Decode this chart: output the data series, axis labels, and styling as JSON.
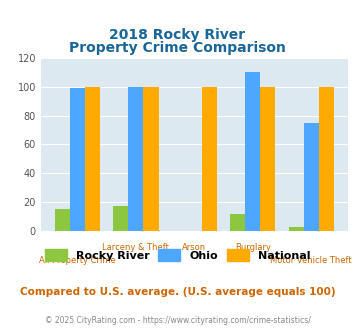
{
  "title_line1": "2018 Rocky River",
  "title_line2": "Property Crime Comparison",
  "categories": [
    "All Property Crime",
    "Larceny & Theft",
    "Arson",
    "Burglary",
    "Motor Vehicle Theft"
  ],
  "top_labels": [
    "",
    "Larceny & Theft",
    "Arson",
    "Burglary",
    ""
  ],
  "bottom_labels": [
    "All Property Crime",
    "",
    "",
    "",
    "Motor Vehicle Theft"
  ],
  "series": {
    "Rocky River": [
      15,
      17,
      0,
      12,
      3
    ],
    "Ohio": [
      99,
      100,
      0,
      110,
      75
    ],
    "National": [
      100,
      100,
      100,
      100,
      100
    ]
  },
  "colors": {
    "Rocky River": "#8dc63f",
    "Ohio": "#4da6ff",
    "National": "#ffaa00"
  },
  "ylim": [
    0,
    120
  ],
  "yticks": [
    0,
    20,
    40,
    60,
    80,
    100,
    120
  ],
  "plot_bg": "#dce9f0",
  "title_color": "#1a6699",
  "xlabel_color": "#cc6600",
  "footer_note": "Compared to U.S. average. (U.S. average equals 100)",
  "copyright": "© 2025 CityRating.com - https://www.cityrating.com/crime-statistics/",
  "footer_color": "#cc6600",
  "copyright_color": "#888888",
  "legend_labels": [
    "Rocky River",
    "Ohio",
    "National"
  ]
}
